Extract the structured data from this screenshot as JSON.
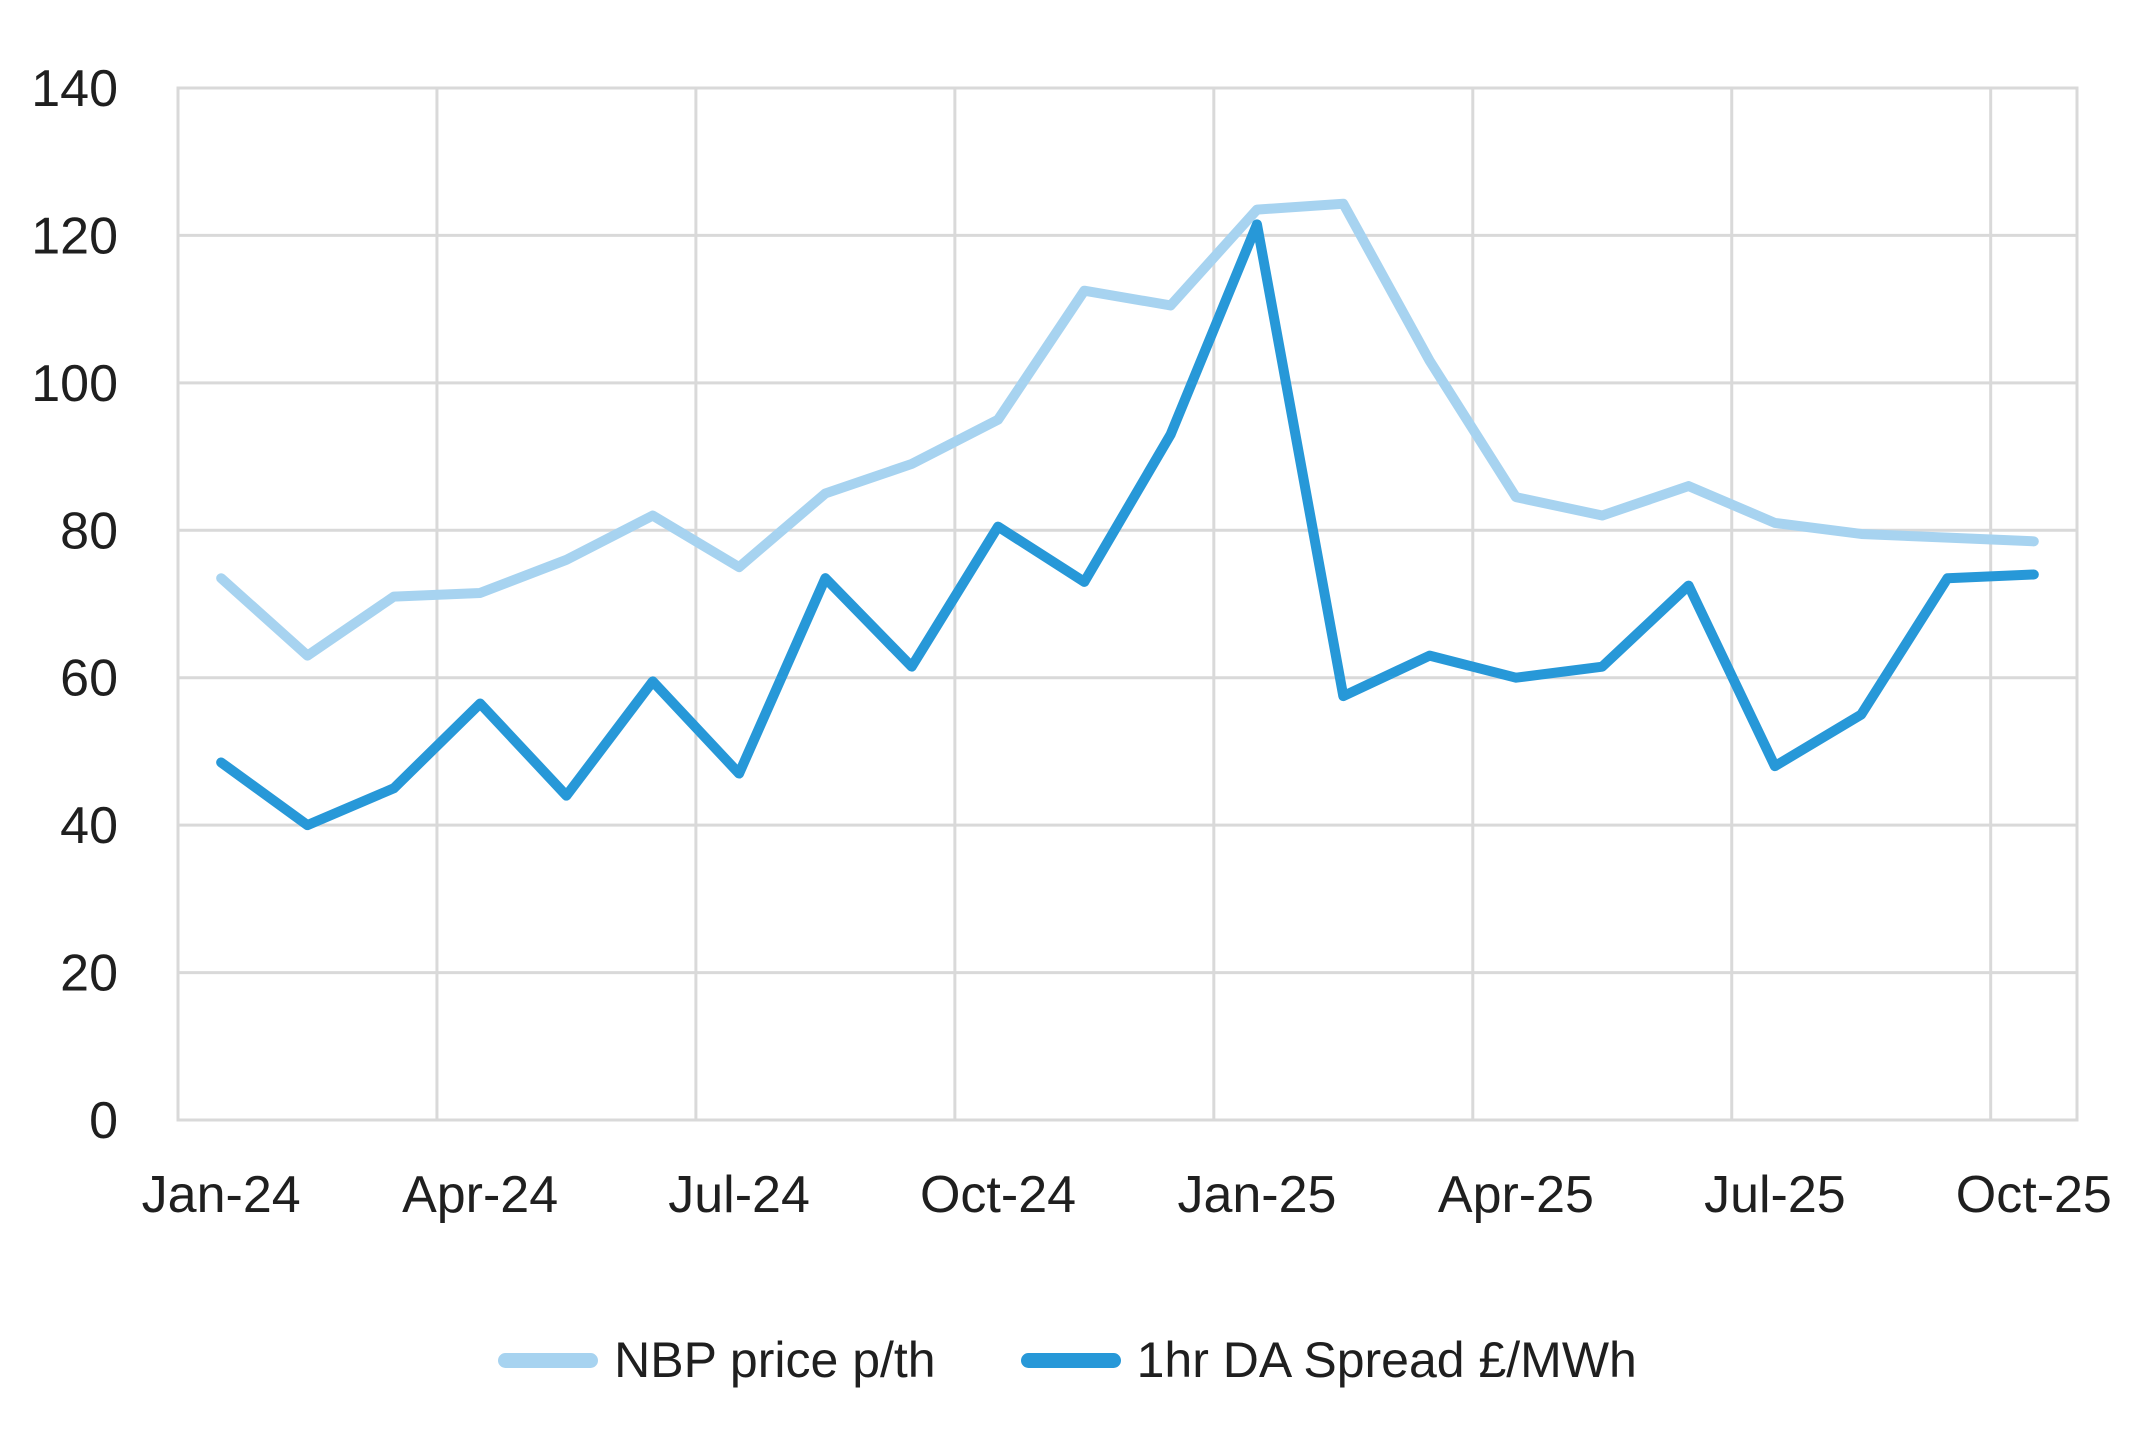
{
  "chart_data": {
    "type": "line",
    "categories": [
      "Jan-24",
      "Feb-24",
      "Mar-24",
      "Apr-24",
      "May-24",
      "Jun-24",
      "Jul-24",
      "Aug-24",
      "Sep-24",
      "Oct-24",
      "Nov-24",
      "Dec-24",
      "Jan-25",
      "Feb-25",
      "Mar-25",
      "Apr-25",
      "May-25",
      "Jun-25",
      "Jul-25",
      "Aug-25",
      "Sep-25",
      "Oct-25"
    ],
    "x_tick_labels": [
      "Jan-24",
      "Apr-24",
      "Jul-24",
      "Oct-24",
      "Jan-25",
      "Apr-25",
      "Jul-25",
      "Oct-25"
    ],
    "x_tick_interval": 3,
    "y_ticks": [
      0,
      20,
      40,
      60,
      80,
      100,
      120,
      140
    ],
    "ylim": [
      0,
      140
    ],
    "grid": true,
    "legend_position": "bottom",
    "title": "",
    "xlabel": "",
    "ylabel": "",
    "series": [
      {
        "name": "NBP price p/th",
        "color": "#a7d3f0",
        "values": [
          73.5,
          63,
          71,
          71.5,
          76,
          82,
          75,
          85,
          89,
          95,
          112.5,
          110.5,
          123.5,
          124.3,
          103,
          84.5,
          82,
          86,
          81,
          79.5,
          79,
          78.5
        ]
      },
      {
        "name": "1hr DA Spread £/MWh",
        "color": "#2798d8",
        "values": [
          48.5,
          40,
          45,
          56.5,
          44,
          59.5,
          47,
          73.5,
          61.5,
          80.5,
          73,
          93,
          121.5,
          57.5,
          63,
          60,
          61.5,
          72.5,
          48,
          55,
          73.5,
          74
        ]
      }
    ],
    "colors": {
      "grid": "#d9d9d9",
      "text": "#1f1f1f",
      "background": "#ffffff"
    }
  }
}
